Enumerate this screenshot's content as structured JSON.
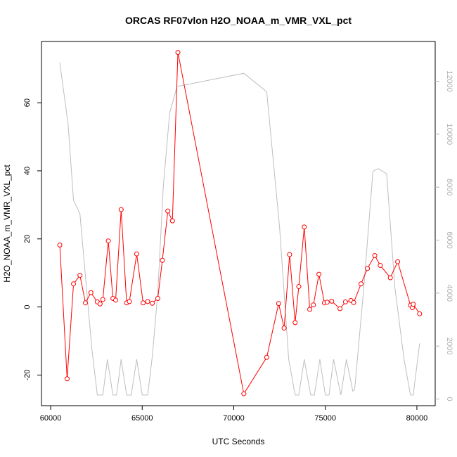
{
  "chart_data": {
    "type": "line",
    "title": "ORCAS RF07vlon H2O_NOAA_m_VMR_VXL_pct",
    "xlabel": "UTC Seconds",
    "ylabel": "H2O_NOAA_m_VMR_VXL_pct",
    "xlim": [
      59500,
      81000
    ],
    "ylim": [
      -29,
      78
    ],
    "y2lim": [
      -250,
      13500
    ],
    "x_ticks": [
      60000,
      65000,
      70000,
      75000,
      80000
    ],
    "y_ticks": [
      -20,
      0,
      20,
      40,
      60
    ],
    "y2_ticks": [
      0,
      2000,
      4000,
      6000,
      8000,
      10000,
      12000
    ],
    "grid": false,
    "colors": {
      "primary": "#ff0000",
      "secondary": "#bebebe"
    },
    "series": [
      {
        "axis": "left",
        "style": "line+points",
        "x": [
          60500,
          60900,
          61250,
          61600,
          61900,
          62200,
          62550,
          62700,
          62850,
          63150,
          63400,
          63550,
          63850,
          64150,
          64300,
          64700,
          65050,
          65300,
          65550,
          65850,
          66100,
          66400,
          66650,
          66950,
          70550,
          71800,
          72450,
          72750,
          73050,
          73350,
          73550,
          73850,
          74150,
          74350,
          74650,
          74950,
          75100,
          75350,
          75800,
          76100,
          76400,
          76550,
          76950,
          77300,
          77700,
          78000,
          78550,
          78950,
          79650,
          79750,
          79800,
          80150
        ],
        "y": [
          18.2,
          -21.1,
          6.8,
          9.3,
          1.2,
          4.2,
          1.5,
          0.9,
          2.2,
          19.4,
          2.5,
          2.0,
          28.6,
          1.2,
          1.6,
          15.6,
          1.2,
          1.6,
          1.1,
          2.5,
          13.7,
          28.2,
          25.3,
          74.8,
          -25.5,
          -14.8,
          1.0,
          -6.2,
          15.4,
          -4.6,
          6.0,
          23.5,
          -0.7,
          0.6,
          9.6,
          1.2,
          1.4,
          1.7,
          -0.5,
          1.5,
          1.9,
          1.3,
          6.8,
          11.3,
          15.1,
          12.2,
          8.6,
          13.3,
          0.5,
          -0.2,
          0.8,
          -2.0
        ]
      },
      {
        "axis": "right",
        "style": "line",
        "x": [
          60500,
          60950,
          61250,
          61600,
          62250,
          62550,
          62850,
          63100,
          63400,
          63600,
          63850,
          64150,
          64400,
          64700,
          65000,
          65300,
          65550,
          65850,
          66150,
          66500,
          66900,
          70550,
          71800,
          72500,
          73000,
          73350,
          73550,
          73850,
          74200,
          74400,
          74700,
          75000,
          75200,
          75450,
          75850,
          76150,
          76500,
          76600,
          77100,
          77600,
          77900,
          78350,
          78800,
          79300,
          79650,
          79800,
          80150
        ],
        "y": [
          12700,
          10400,
          7500,
          7000,
          1900,
          150,
          150,
          1500,
          150,
          150,
          1500,
          150,
          150,
          1500,
          150,
          150,
          1600,
          4000,
          8000,
          10800,
          11800,
          12300,
          11600,
          6500,
          1500,
          150,
          150,
          1500,
          150,
          150,
          1500,
          150,
          150,
          1500,
          150,
          1500,
          300,
          350,
          4200,
          8600,
          8700,
          8500,
          4200,
          1500,
          150,
          150,
          2100
        ]
      }
    ]
  }
}
